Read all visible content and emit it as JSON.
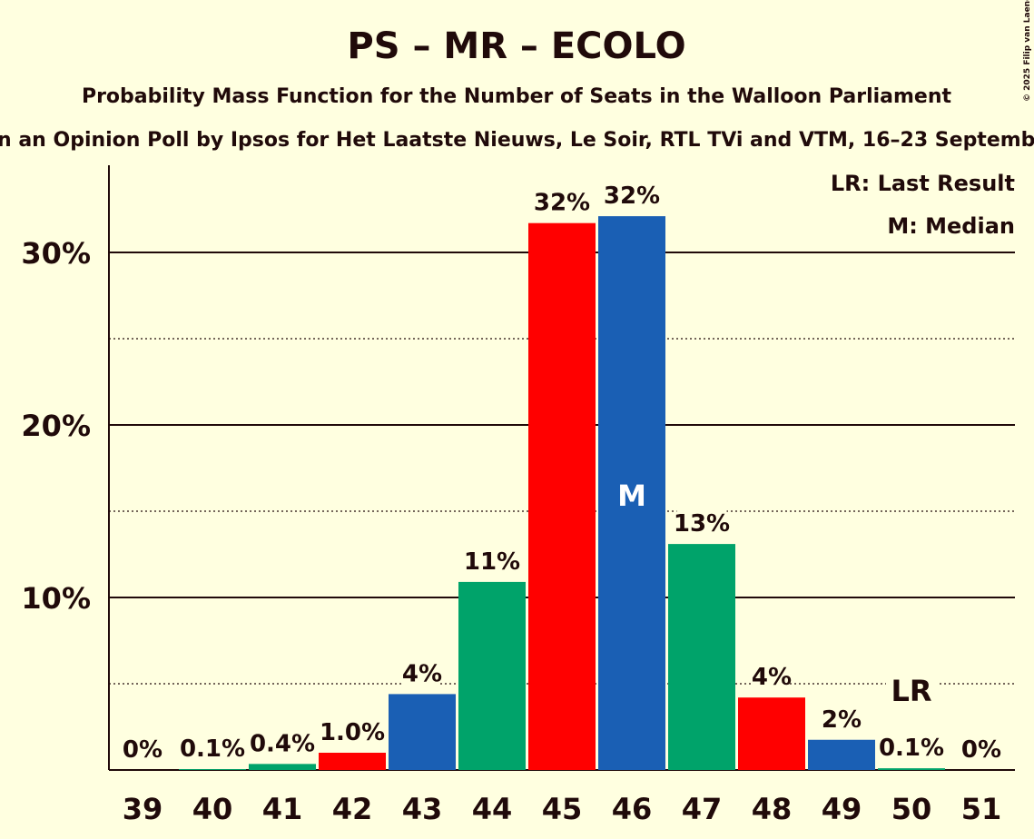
{
  "chart_data": {
    "type": "bar",
    "title": "PS – MR – ECOLO",
    "subtitle": "Probability Mass Function for the Number of Seats in the Walloon Parliament",
    "subtitle2": "n an Opinion Poll by Ipsos for Het Laatste Nieuws, Le Soir, RTL TVi and VTM, 16–23 Septemb",
    "copyright": "© 2025 Filip van Laenen",
    "xlabel": "",
    "ylabel": "",
    "ylim": [
      0,
      35
    ],
    "yticks": [
      {
        "v": 10,
        "label": "10%"
      },
      {
        "v": 20,
        "label": "20%"
      },
      {
        "v": 30,
        "label": "30%"
      }
    ],
    "minor_gridlines": [
      5,
      15,
      25
    ],
    "categories": [
      "39",
      "40",
      "41",
      "42",
      "43",
      "44",
      "45",
      "46",
      "47",
      "48",
      "49",
      "50",
      "51"
    ],
    "values": [
      0,
      0.05,
      0.35,
      1.0,
      4.4,
      10.9,
      31.7,
      32.1,
      13.1,
      4.2,
      1.75,
      0.1,
      0
    ],
    "labels": [
      "0%",
      "0.1%",
      "0.4%",
      "1.0%",
      "4%",
      "11%",
      "32%",
      "32%",
      "13%",
      "4%",
      "2%",
      "0.1%",
      "0%"
    ],
    "colors": [
      "#1a5fb4",
      "#00a36a",
      "#00a36a",
      "#ff0000",
      "#1a5fb4",
      "#00a36a",
      "#ff0000",
      "#1a5fb4",
      "#00a36a",
      "#ff0000",
      "#1a5fb4",
      "#00a36a",
      "#ff0000"
    ],
    "median_index": 7,
    "median_label": "M",
    "last_result_index": 11,
    "last_result_label": "LR",
    "legend": [
      "LR: Last Result",
      "M: Median"
    ],
    "legend_position": "top-right"
  }
}
